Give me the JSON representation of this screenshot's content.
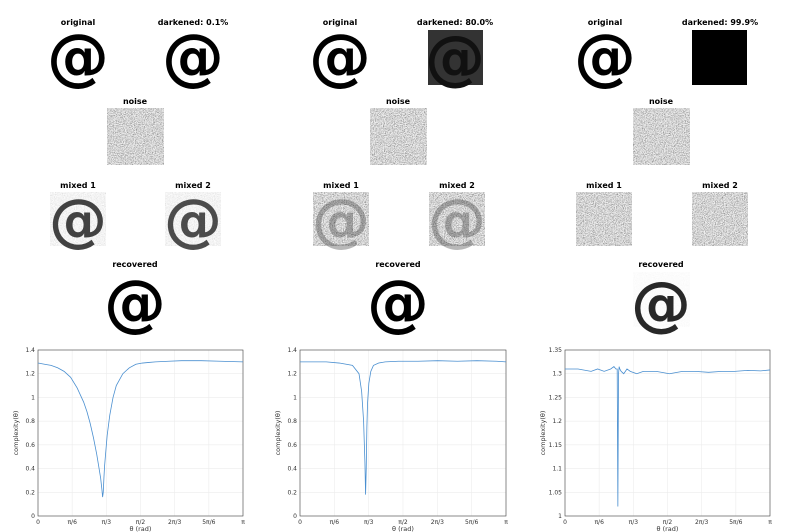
{
  "columns": [
    {
      "titles": {
        "original": "original",
        "darkened": "darkened: 0.1%",
        "noise": "noise",
        "mixed1": "mixed 1",
        "mixed2": "mixed 2",
        "recovered": "recovered"
      },
      "darkened_fraction": 0.001
    },
    {
      "titles": {
        "original": "original",
        "darkened": "darkened: 80.0%",
        "noise": "noise",
        "mixed1": "mixed 1",
        "mixed2": "mixed 2",
        "recovered": "recovered"
      },
      "darkened_fraction": 0.8
    },
    {
      "titles": {
        "original": "original",
        "darkened": "darkened: 99.9%",
        "noise": "noise",
        "mixed1": "mixed 1",
        "mixed2": "mixed 2",
        "recovered": "recovered"
      },
      "darkened_fraction": 0.999
    }
  ],
  "chart_data": [
    {
      "type": "line",
      "xlabel": "θ (rad)",
      "ylabel": "complexity(θ)",
      "xlim": [
        0,
        3.1416
      ],
      "ylim": [
        0,
        1.4
      ],
      "yticks": [
        "0",
        "0.2",
        "0.4",
        "0.6",
        "0.8",
        "1",
        "1.2",
        "1.4"
      ],
      "xticks": [
        "0",
        "π/6",
        "π/3",
        "π/2",
        "2π/3",
        "5π/6",
        "π"
      ],
      "grid": true,
      "color": "#4a8fd0",
      "series": [
        {
          "x": [
            0,
            0.1,
            0.2,
            0.3,
            0.4,
            0.5,
            0.6,
            0.7,
            0.75,
            0.8,
            0.85,
            0.9,
            0.93,
            0.96,
            0.98,
            0.99,
            1.0,
            1.01,
            1.02,
            1.04,
            1.06,
            1.1,
            1.15,
            1.2,
            1.3,
            1.4,
            1.5,
            1.6,
            1.7,
            1.8,
            2.0,
            2.2,
            2.5,
            2.8,
            3.1416
          ],
          "y": [
            1.29,
            1.28,
            1.27,
            1.25,
            1.22,
            1.17,
            1.08,
            0.96,
            0.88,
            0.78,
            0.66,
            0.52,
            0.42,
            0.32,
            0.22,
            0.16,
            0.2,
            0.32,
            0.42,
            0.55,
            0.68,
            0.85,
            1.0,
            1.1,
            1.2,
            1.25,
            1.28,
            1.29,
            1.295,
            1.3,
            1.305,
            1.31,
            1.31,
            1.305,
            1.3
          ]
        }
      ]
    },
    {
      "type": "line",
      "xlabel": "θ (rad)",
      "ylabel": "complexity(θ)",
      "xlim": [
        0,
        3.1416
      ],
      "ylim": [
        0,
        1.4
      ],
      "yticks": [
        "0",
        "0.2",
        "0.4",
        "0.6",
        "0.8",
        "1",
        "1.2",
        "1.4"
      ],
      "xticks": [
        "0",
        "π/6",
        "π/3",
        "π/2",
        "2π/3",
        "5π/6",
        "π"
      ],
      "grid": true,
      "color": "#4a8fd0",
      "series": [
        {
          "x": [
            0,
            0.2,
            0.4,
            0.6,
            0.8,
            0.9,
            0.94,
            0.97,
            0.99,
            1.0,
            1.01,
            1.02,
            1.03,
            1.05,
            1.08,
            1.12,
            1.2,
            1.3,
            1.5,
            1.8,
            2.1,
            2.4,
            2.7,
            3.0,
            3.1416
          ],
          "y": [
            1.3,
            1.3,
            1.3,
            1.29,
            1.27,
            1.2,
            1.05,
            0.8,
            0.45,
            0.18,
            0.4,
            0.75,
            0.95,
            1.12,
            1.22,
            1.27,
            1.29,
            1.3,
            1.305,
            1.305,
            1.31,
            1.305,
            1.31,
            1.305,
            1.3
          ]
        }
      ]
    },
    {
      "type": "line",
      "xlabel": "θ (rad)",
      "ylabel": "complexity(θ)",
      "xlim": [
        0,
        3.1416
      ],
      "ylim": [
        1,
        1.35
      ],
      "yticks": [
        "1",
        "1.05",
        "1.1",
        "1.15",
        "1.2",
        "1.25",
        "1.3",
        "1.35"
      ],
      "xticks": [
        "0",
        "π/6",
        "π/3",
        "π/2",
        "2π/3",
        "5π/6",
        "π"
      ],
      "grid": true,
      "color": "#4a8fd0",
      "series": [
        {
          "x": [
            0,
            0.2,
            0.4,
            0.5,
            0.6,
            0.7,
            0.75,
            0.78,
            0.8,
            0.81,
            0.82,
            0.83,
            0.84,
            0.86,
            0.9,
            0.95,
            1.0,
            1.1,
            1.2,
            1.4,
            1.6,
            1.8,
            2.0,
            2.2,
            2.4,
            2.6,
            2.8,
            3.0,
            3.1416
          ],
          "y": [
            1.31,
            1.31,
            1.305,
            1.31,
            1.305,
            1.31,
            1.315,
            1.31,
            1.31,
            1.02,
            1.3,
            1.315,
            1.31,
            1.305,
            1.3,
            1.31,
            1.305,
            1.3,
            1.305,
            1.305,
            1.3,
            1.305,
            1.305,
            1.303,
            1.305,
            1.305,
            1.307,
            1.306,
            1.308
          ]
        }
      ]
    }
  ]
}
